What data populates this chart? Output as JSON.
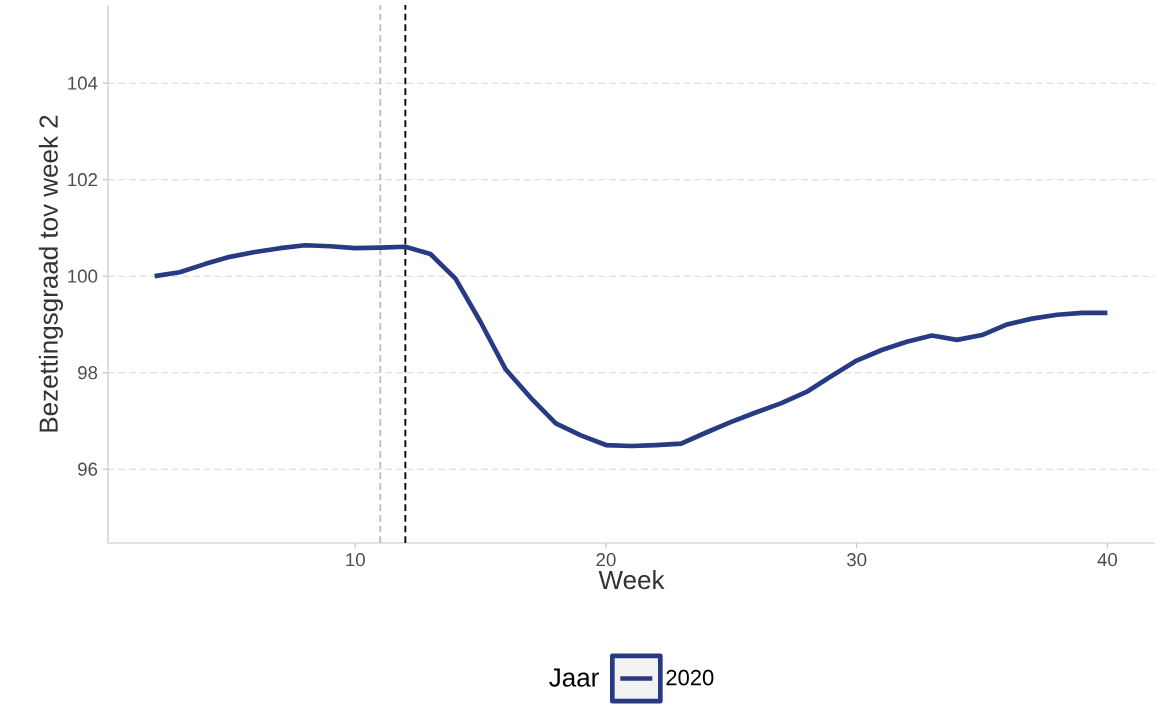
{
  "chart_data": {
    "type": "line",
    "xlabel": "Week",
    "ylabel": "Bezettingsgraad tov week 2",
    "legend_title": "Jaar",
    "legend": "bottom",
    "grid": "y",
    "line_style": "solid",
    "marker": "none",
    "xlim": [
      0.14,
      41.9
    ],
    "ylim": [
      94.47,
      105.62
    ],
    "xticks": [
      10,
      20,
      30,
      40
    ],
    "yticks": [
      96,
      98,
      100,
      102,
      104
    ],
    "x": [
      2,
      3,
      4,
      5,
      6,
      7,
      8,
      9,
      10,
      11,
      12,
      13,
      14,
      15,
      16,
      17,
      18,
      19,
      20,
      21,
      22,
      23,
      24,
      25,
      26,
      27,
      28,
      29,
      30,
      31,
      32,
      33,
      34,
      35,
      36,
      37,
      38,
      39,
      40
    ],
    "series": [
      {
        "name": "2020",
        "color": "#283a83",
        "values": [
          100.0,
          100.08,
          100.25,
          100.4,
          100.5,
          100.58,
          100.64,
          100.62,
          100.58,
          100.59,
          100.61,
          100.46,
          99.95,
          99.05,
          98.07,
          97.48,
          96.95,
          96.7,
          96.5,
          96.48,
          96.5,
          96.53,
          96.76,
          96.98,
          97.18,
          97.37,
          97.6,
          97.93,
          98.25,
          98.47,
          98.64,
          98.77,
          98.68,
          98.78,
          99.0,
          99.12,
          99.2,
          99.24,
          99.24
        ]
      }
    ],
    "ref_lines": [
      {
        "axis": "x",
        "value": 11,
        "color": "#bdbdbd",
        "line_style": "dashed"
      },
      {
        "axis": "x",
        "value": 12,
        "color": "#000000",
        "line_style": "dashed"
      }
    ]
  }
}
